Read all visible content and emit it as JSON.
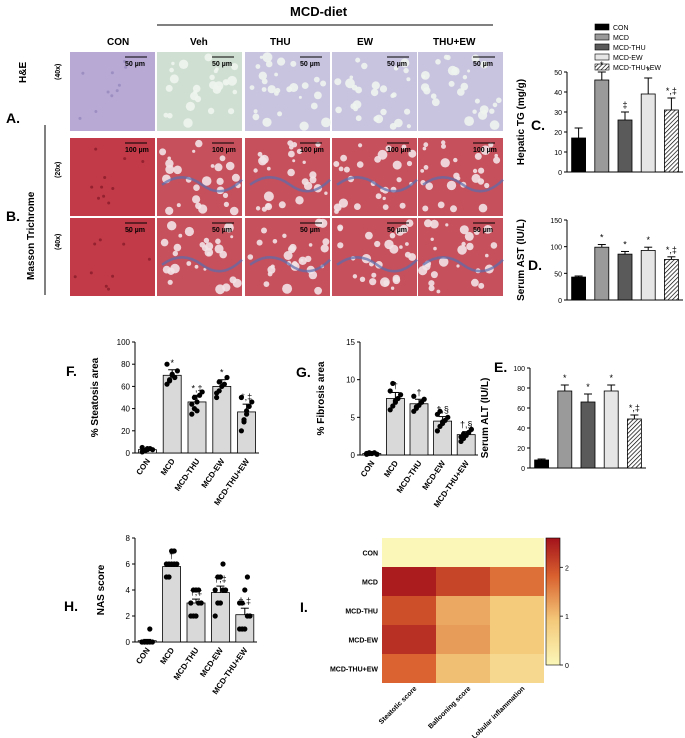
{
  "histology": {
    "group_title": "MCD-diet",
    "columns": [
      "CON",
      "Veh",
      "THU",
      "EW",
      "THU+EW"
    ],
    "rows": [
      {
        "stain": "H&E",
        "mag": "(40x)",
        "scale": "50 µm"
      },
      {
        "stain": "",
        "mag": "(20x)",
        "scale": "100 µm"
      },
      {
        "stain": "",
        "mag": "(40x)",
        "scale": "50 µm"
      }
    ],
    "masson_label": "Masson Trichrome",
    "panel_A": "A.",
    "panel_B": "B.",
    "colors": {
      "he": "#b6a8d4",
      "he_steatotic": "#d6e6d0",
      "masson": "#b8323f"
    }
  },
  "legend": {
    "items": [
      {
        "label": "CON",
        "color": "#000000",
        "pattern": "solid"
      },
      {
        "label": "MCD",
        "color": "#9a9a9a",
        "pattern": "solid"
      },
      {
        "label": "MCD-THU",
        "color": "#5a5a5a",
        "pattern": "solid"
      },
      {
        "label": "MCD-EW",
        "color": "#e6e6e6",
        "pattern": "solid"
      },
      {
        "label": "MCD-THU+EW",
        "color": "#ffffff",
        "pattern": "hatch"
      }
    ]
  },
  "chart_data": [
    {
      "id": "C",
      "panel": "C.",
      "type": "bar",
      "categories": [
        "CON",
        "MCD",
        "MCD-THU",
        "MCD-EW",
        "MCD-THU+EW"
      ],
      "values": [
        17,
        46,
        26,
        39,
        31
      ],
      "errors": [
        5,
        4,
        4,
        8,
        6
      ],
      "marks": [
        "",
        "*",
        "‡",
        "*",
        "*,‡"
      ],
      "ylabel": "Hepatic TG (mg/g)",
      "ylim": [
        0,
        50
      ],
      "yticks": [
        0,
        10,
        20,
        30,
        40,
        50
      ]
    },
    {
      "id": "D",
      "panel": "D.",
      "type": "bar",
      "categories": [
        "CON",
        "MCD",
        "MCD-THU",
        "MCD-EW",
        "MCD-THU+EW"
      ],
      "values": [
        43,
        99,
        86,
        93,
        76
      ],
      "errors": [
        2,
        5,
        5,
        6,
        5
      ],
      "marks": [
        "",
        "*",
        "*",
        "*",
        "*,‡"
      ],
      "ylabel": "Serum AST (IU/L)",
      "ylim": [
        0,
        150
      ],
      "yticks": [
        0,
        50,
        100,
        150
      ]
    },
    {
      "id": "E",
      "panel": "E.",
      "type": "bar",
      "categories": [
        "CON",
        "MCD",
        "MCD-THU",
        "MCD-EW",
        "MCD-THU+EW"
      ],
      "values": [
        8,
        77,
        66,
        77,
        49
      ],
      "errors": [
        1,
        6,
        8,
        6,
        4
      ],
      "marks": [
        "",
        "*",
        "*",
        "*",
        "*,‡"
      ],
      "ylabel": "Serum ALT (IU/L)",
      "ylim": [
        0,
        100
      ],
      "yticks": [
        0,
        20,
        40,
        60,
        80,
        100
      ]
    },
    {
      "id": "F",
      "panel": "F.",
      "type": "bar",
      "categories": [
        "CON",
        "MCD",
        "MCD-THU",
        "MCD-EW",
        "MCD-THU+EW"
      ],
      "values": [
        3,
        70,
        46,
        60,
        37
      ],
      "errors": [
        1,
        5,
        6,
        6,
        7
      ],
      "marks": [
        "",
        "*",
        "*,‡",
        "*",
        "*,‡"
      ],
      "points": [
        [
          1,
          2,
          3,
          4,
          3,
          5,
          2,
          4
        ],
        [
          62,
          66,
          71,
          68,
          74,
          80,
          65,
          70
        ],
        [
          35,
          40,
          46,
          52,
          55,
          44,
          50,
          38
        ],
        [
          50,
          56,
          60,
          62,
          68,
          54,
          64
        ],
        [
          20,
          28,
          35,
          42,
          46,
          50,
          30,
          38
        ]
      ],
      "ylabel": "% Steatosis area",
      "ylim": [
        0,
        100
      ],
      "yticks": [
        0,
        20,
        40,
        60,
        80,
        100
      ]
    },
    {
      "id": "G",
      "panel": "G.",
      "type": "bar",
      "categories": [
        "CON",
        "MCD",
        "MCD-THU",
        "MCD-EW",
        "MCD-THU+EW"
      ],
      "values": [
        0.2,
        7.5,
        6.8,
        4.5,
        2.7
      ],
      "errors": [
        0.1,
        0.8,
        0.6,
        0.6,
        0.4
      ],
      "marks": [
        "",
        "†",
        "†",
        "†,§",
        "†,§"
      ],
      "points": [
        [
          0.1,
          0.2,
          0.2,
          0.3,
          0.1,
          0.2,
          0.3
        ],
        [
          6.0,
          6.5,
          7.0,
          7.5,
          8.0,
          8.5,
          9.5,
          7.2
        ],
        [
          5.8,
          6.2,
          6.6,
          7.0,
          7.4,
          7.8,
          6.4
        ],
        [
          3.2,
          3.8,
          4.2,
          4.6,
          5.0,
          5.4,
          5.8,
          4.4
        ],
        [
          1.8,
          2.2,
          2.6,
          3.0,
          3.4,
          2.4,
          2.8
        ]
      ],
      "ylabel": "% Fibrosis area",
      "ylim": [
        0,
        15
      ],
      "yticks": [
        0,
        5,
        10,
        15
      ]
    },
    {
      "id": "H",
      "panel": "H.",
      "type": "bar",
      "categories": [
        "CON",
        "MCD",
        "MCD-THU",
        "MCD-EW",
        "MCD-THU+EW"
      ],
      "values": [
        0.1,
        5.8,
        3.0,
        3.8,
        2.1
      ],
      "errors": [
        0.1,
        0.3,
        0.3,
        0.5,
        0.5
      ],
      "marks": [
        "",
        "†",
        "†,‡",
        "†,‡",
        "†,‡"
      ],
      "points": [
        [
          0,
          0,
          0,
          0,
          0,
          0,
          0,
          0,
          1
        ],
        [
          5,
          5,
          6,
          6,
          6,
          6,
          6,
          7,
          7
        ],
        [
          2,
          2,
          2,
          3,
          3,
          3,
          4,
          4,
          4
        ],
        [
          2,
          3,
          3,
          4,
          4,
          4,
          5,
          5,
          6
        ],
        [
          1,
          1,
          1,
          2,
          2,
          3,
          3,
          4,
          5
        ]
      ],
      "ylabel": "NAS score",
      "ylim": [
        0,
        8
      ],
      "yticks": [
        0,
        2,
        4,
        6,
        8
      ]
    },
    {
      "id": "I",
      "panel": "I.",
      "type": "heatmap",
      "rows": [
        "CON",
        "MCD",
        "MCD-THU",
        "MCD-EW",
        "MCD-THU+EW"
      ],
      "columns": [
        "Steatotic score",
        "Ballooning score",
        "Lobular inflammation"
      ],
      "values": [
        [
          0.0,
          0.0,
          0.0
        ],
        [
          2.5,
          2.1,
          1.7
        ],
        [
          2.0,
          1.2,
          0.9
        ],
        [
          2.3,
          1.3,
          0.9
        ],
        [
          1.8,
          1.0,
          0.6
        ]
      ],
      "colorbar": {
        "min": 0,
        "max": 2.6,
        "ticks": [
          0,
          1,
          2
        ]
      }
    }
  ]
}
